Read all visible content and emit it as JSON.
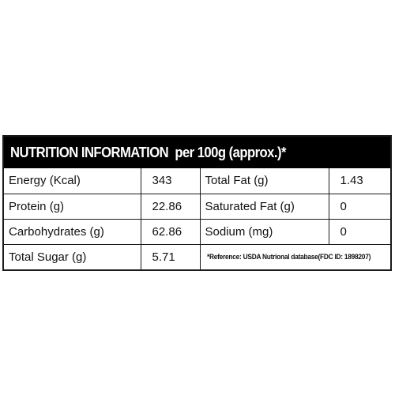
{
  "header": {
    "title_bold": "NUTRITION INFORMATION",
    "title_rest": "per 100g (approx.)*"
  },
  "rows": [
    {
      "label_left": "Energy (Kcal)",
      "value_left": "343",
      "label_right": "Total Fat (g)",
      "value_right": "1.43"
    },
    {
      "label_left": "Protein (g)",
      "value_left": "22.86",
      "label_right": "Saturated Fat (g)",
      "value_right": "0"
    },
    {
      "label_left": "Carbohydrates (g)",
      "value_left": "62.86",
      "label_right": "Sodium (mg)",
      "value_right": "0"
    },
    {
      "label_left": "Total Sugar (g)",
      "value_left": "5.71"
    }
  ],
  "reference_note": "*Reference: USDA Nutrional database(FDC ID: 1898207)"
}
